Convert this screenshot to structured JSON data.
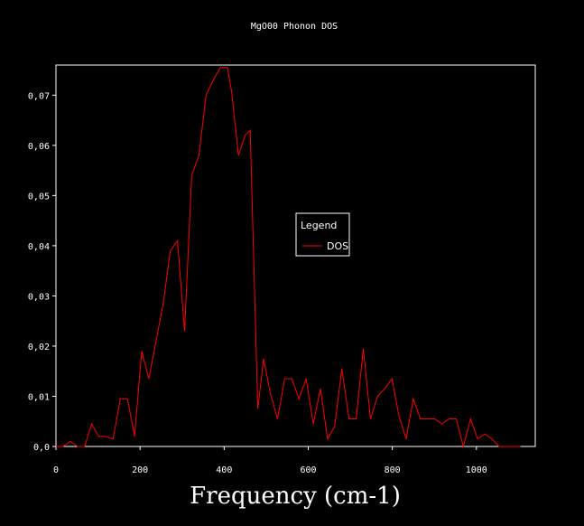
{
  "chart_data": {
    "type": "line",
    "title": "MgO00 Phonon DOS",
    "xlabel": "Frequency (cm-1)",
    "ylabel": "",
    "xlim": [
      0,
      1140
    ],
    "ylim": [
      0,
      0.076
    ],
    "xticks": [
      0,
      200,
      400,
      600,
      800,
      1000
    ],
    "yticks": [
      0.0,
      0.01,
      0.02,
      0.03,
      0.04,
      0.05,
      0.06,
      0.07
    ],
    "ytick_labels": [
      "0,0",
      "0,01",
      "0,02",
      "0,03",
      "0,04",
      "0,05",
      "0,06",
      "0,07"
    ],
    "legend": {
      "title": "Legend",
      "placement": "center-right"
    },
    "colors": {
      "background": "#000000",
      "axes": "#ffffff",
      "series": "#ff0000"
    },
    "series": [
      {
        "name": "DOS",
        "x": [
          0,
          17,
          34,
          51,
          68,
          85,
          102,
          119,
          136,
          153,
          170,
          187,
          204,
          221,
          238,
          255,
          272,
          289,
          306,
          323,
          340,
          357,
          374,
          391,
          408,
          418,
          434,
          450,
          462,
          480,
          494,
          510,
          527,
          544,
          561,
          578,
          595,
          612,
          629,
          646,
          663,
          680,
          697,
          714,
          731,
          748,
          765,
          782,
          799,
          816,
          833,
          850,
          867,
          884,
          901,
          918,
          935,
          952,
          969,
          986,
          1003,
          1020,
          1037,
          1054,
          1071,
          1088,
          1105
        ],
        "y": [
          0.0,
          0.0,
          0.001,
          0.0,
          0.0,
          0.0045,
          0.002,
          0.002,
          0.0015,
          0.0095,
          0.0095,
          0.002,
          0.019,
          0.0135,
          0.021,
          0.0285,
          0.039,
          0.041,
          0.023,
          0.054,
          0.058,
          0.07,
          0.073,
          0.0755,
          0.0755,
          0.0705,
          0.058,
          0.062,
          0.063,
          0.0075,
          0.0175,
          0.0105,
          0.0055,
          0.0135,
          0.0135,
          0.0095,
          0.0135,
          0.0045,
          0.0115,
          0.0015,
          0.004,
          0.0155,
          0.0055,
          0.0055,
          0.0195,
          0.0055,
          0.01,
          0.0115,
          0.0135,
          0.006,
          0.0015,
          0.0095,
          0.0055,
          0.0055,
          0.0055,
          0.0045,
          0.0055,
          0.0055,
          0.0,
          0.0055,
          0.0015,
          0.0025,
          0.0015,
          0.0,
          0.0,
          0.0,
          0.0
        ]
      }
    ]
  }
}
